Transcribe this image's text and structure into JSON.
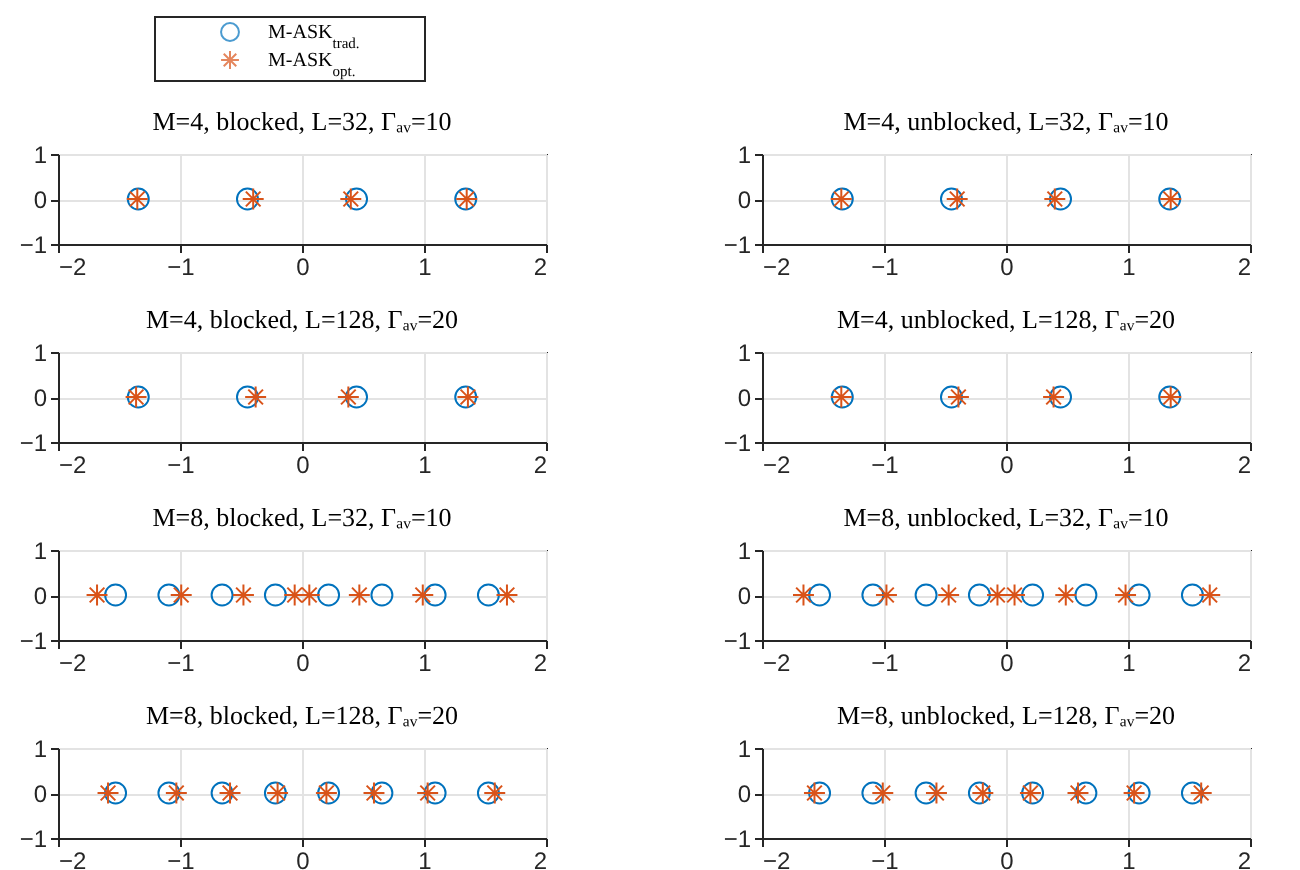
{
  "chart_data": [
    {
      "type": "scatter",
      "title": "M=4, blocked, L=32, Γₐᵥ=10",
      "legend": "top left",
      "grid": true,
      "xlim": [
        -2,
        2
      ],
      "ylim": [
        -1,
        1
      ],
      "xticks": [
        -2,
        -1,
        0,
        1,
        2
      ],
      "yticks": [
        -1,
        0,
        1
      ],
      "series": [
        {
          "name": "M-ASK$_{trad.}$",
          "color": "#0072bd",
          "marker": "circle",
          "x": [
            -1.342,
            -0.447,
            0.447,
            1.342
          ],
          "values": [
            0,
            0,
            0,
            0
          ]
        },
        {
          "name": "M-ASK$_{opt.}$",
          "color": "#d95319",
          "marker": "cross",
          "x": [
            -1.35,
            -0.4,
            0.4,
            1.35
          ],
          "values": [
            0,
            0,
            0,
            0
          ]
        }
      ]
    },
    {
      "type": "scatter",
      "title": "M=4, unblocked, L=32, Γₐᵥ=10",
      "grid": true,
      "xlim": [
        -2,
        2
      ],
      "ylim": [
        -1,
        1
      ],
      "xticks": [
        -2,
        -1,
        0,
        1,
        2
      ],
      "yticks": [
        -1,
        0,
        1
      ],
      "series": [
        {
          "color": "#0072bd",
          "marker": "circle",
          "x": [
            -1.342,
            -0.447,
            0.447,
            1.342
          ],
          "values": [
            0,
            0,
            0,
            0
          ]
        },
        {
          "color": "#d95319",
          "marker": "cross",
          "x": [
            -1.35,
            -0.4,
            0.4,
            1.35
          ],
          "values": [
            0,
            0,
            0,
            0
          ]
        }
      ]
    },
    {
      "type": "scatter",
      "title": "M=4, blocked, L=128, Γₐᵥ=20",
      "grid": true,
      "xlim": [
        -2,
        2
      ],
      "ylim": [
        -1,
        1
      ],
      "xticks": [
        -2,
        -1,
        0,
        1,
        2
      ],
      "yticks": [
        -1,
        0,
        1
      ],
      "series": [
        {
          "color": "#0072bd",
          "marker": "circle",
          "x": [
            -1.342,
            -0.447,
            0.447,
            1.342
          ],
          "values": [
            0,
            0,
            0,
            0
          ]
        },
        {
          "color": "#d95319",
          "marker": "cross",
          "x": [
            -1.36,
            -0.38,
            0.38,
            1.36
          ],
          "values": [
            0,
            0,
            0,
            0
          ]
        }
      ]
    },
    {
      "type": "scatter",
      "title": "M=4, unblocked, L=128, Γₐᵥ=20",
      "grid": true,
      "xlim": [
        -2,
        2
      ],
      "ylim": [
        -1,
        1
      ],
      "xticks": [
        -2,
        -1,
        0,
        1,
        2
      ],
      "yticks": [
        -1,
        0,
        1
      ],
      "series": [
        {
          "color": "#0072bd",
          "marker": "circle",
          "x": [
            -1.342,
            -0.447,
            0.447,
            1.342
          ],
          "values": [
            0,
            0,
            0,
            0
          ]
        },
        {
          "color": "#d95319",
          "marker": "cross",
          "x": [
            -1.35,
            -0.39,
            0.39,
            1.35
          ],
          "values": [
            0,
            0,
            0,
            0
          ]
        }
      ]
    },
    {
      "type": "scatter",
      "title": "M=8, blocked, L=32, Γₐᵥ=10",
      "grid": true,
      "xlim": [
        -2,
        2
      ],
      "ylim": [
        -1,
        1
      ],
      "xticks": [
        -2,
        -1,
        0,
        1,
        2
      ],
      "yticks": [
        -1,
        0,
        1
      ],
      "series": [
        {
          "color": "#0072bd",
          "marker": "circle",
          "x": [
            -1.528,
            -1.091,
            -0.655,
            -0.218,
            0.218,
            0.655,
            1.091,
            1.528
          ],
          "values": [
            0,
            0,
            0,
            0,
            0,
            0,
            0,
            0
          ]
        },
        {
          "color": "#d95319",
          "marker": "cross",
          "x": [
            -1.68,
            -0.99,
            -0.48,
            -0.06,
            0.06,
            0.47,
            0.99,
            1.68
          ],
          "values": [
            0,
            0,
            0,
            0,
            0,
            0,
            0,
            0
          ]
        }
      ]
    },
    {
      "type": "scatter",
      "title": "M=8, unblocked, L=32, Γₐᵥ=10",
      "grid": true,
      "xlim": [
        -2,
        2
      ],
      "ylim": [
        -1,
        1
      ],
      "xticks": [
        -2,
        -1,
        0,
        1,
        2
      ],
      "yticks": [
        -1,
        0,
        1
      ],
      "series": [
        {
          "color": "#0072bd",
          "marker": "circle",
          "x": [
            -1.528,
            -1.091,
            -0.655,
            -0.218,
            0.218,
            0.655,
            1.091,
            1.528
          ],
          "values": [
            0,
            0,
            0,
            0,
            0,
            0,
            0,
            0
          ]
        },
        {
          "color": "#d95319",
          "marker": "cross",
          "x": [
            -1.66,
            -0.98,
            -0.47,
            -0.07,
            0.07,
            0.49,
            0.98,
            1.67
          ],
          "values": [
            0,
            0,
            0,
            0,
            0,
            0,
            0,
            0
          ]
        }
      ]
    },
    {
      "type": "scatter",
      "title": "M=8, blocked, L=128, Γₐᵥ=20",
      "grid": true,
      "xlim": [
        -2,
        2
      ],
      "ylim": [
        -1,
        1
      ],
      "xticks": [
        -2,
        -1,
        0,
        1,
        2
      ],
      "yticks": [
        -1,
        0,
        1
      ],
      "series": [
        {
          "color": "#0072bd",
          "marker": "circle",
          "x": [
            -1.528,
            -1.091,
            -0.655,
            -0.218,
            0.218,
            0.655,
            1.091,
            1.528
          ],
          "values": [
            0,
            0,
            0,
            0,
            0,
            0,
            0,
            0
          ]
        },
        {
          "color": "#d95319",
          "marker": "cross",
          "x": [
            -1.59,
            -1.03,
            -0.59,
            -0.2,
            0.2,
            0.59,
            1.03,
            1.58
          ],
          "values": [
            0,
            0,
            0,
            0,
            0,
            0,
            0,
            0
          ]
        }
      ]
    },
    {
      "type": "scatter",
      "title": "M=8, unblocked, L=128, Γₐᵥ=20",
      "grid": true,
      "xlim": [
        -2,
        2
      ],
      "ylim": [
        -1,
        1
      ],
      "xticks": [
        -2,
        -1,
        0,
        1,
        2
      ],
      "yticks": [
        -1,
        0,
        1
      ],
      "series": [
        {
          "color": "#0072bd",
          "marker": "circle",
          "x": [
            -1.528,
            -1.091,
            -0.655,
            -0.218,
            0.218,
            0.655,
            1.091,
            1.528
          ],
          "values": [
            0,
            0,
            0,
            0,
            0,
            0,
            0,
            0
          ]
        },
        {
          "color": "#d95319",
          "marker": "cross",
          "x": [
            -1.57,
            -1.01,
            -0.57,
            -0.19,
            0.2,
            0.59,
            1.05,
            1.6
          ],
          "values": [
            0,
            0,
            0,
            0,
            0,
            0,
            0,
            0
          ]
        }
      ]
    }
  ]
}
